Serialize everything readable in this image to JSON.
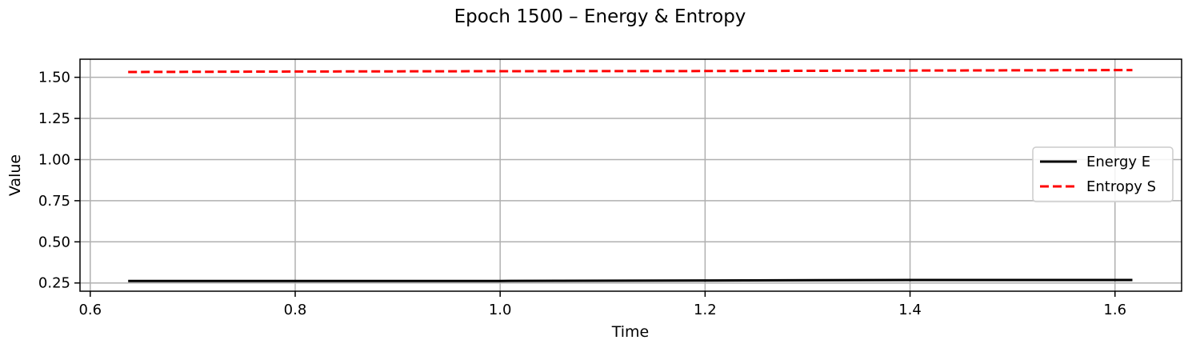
{
  "chart_data": {
    "type": "line",
    "title": "Epoch 1500 – Energy & Entropy",
    "xlabel": "Time",
    "ylabel": "Value",
    "xlim": [
      0.59,
      1.665
    ],
    "ylim": [
      0.2,
      1.61
    ],
    "xticks": [
      0.6,
      0.8,
      1.0,
      1.2,
      1.4,
      1.6
    ],
    "xtick_labels": [
      "0.6",
      "0.8",
      "1.0",
      "1.2",
      "1.4",
      "1.6"
    ],
    "yticks": [
      0.25,
      0.5,
      0.75,
      1.0,
      1.25,
      1.5
    ],
    "ytick_labels": [
      "0.25",
      "0.50",
      "0.75",
      "1.00",
      "1.25",
      "1.50"
    ],
    "grid": true,
    "legend_position": "right",
    "series": [
      {
        "name": "Energy E",
        "color": "#000000",
        "style": "solid",
        "x": [
          0.637,
          0.8,
          1.0,
          1.2,
          1.4,
          1.617
        ],
        "y": [
          0.262,
          0.262,
          0.262,
          0.265,
          0.268,
          0.268
        ]
      },
      {
        "name": "Entropy S",
        "color": "#ff0000",
        "style": "dashed",
        "x": [
          0.637,
          0.8,
          1.0,
          1.2,
          1.4,
          1.617
        ],
        "y": [
          1.532,
          1.535,
          1.537,
          1.538,
          1.541,
          1.544
        ]
      }
    ]
  }
}
